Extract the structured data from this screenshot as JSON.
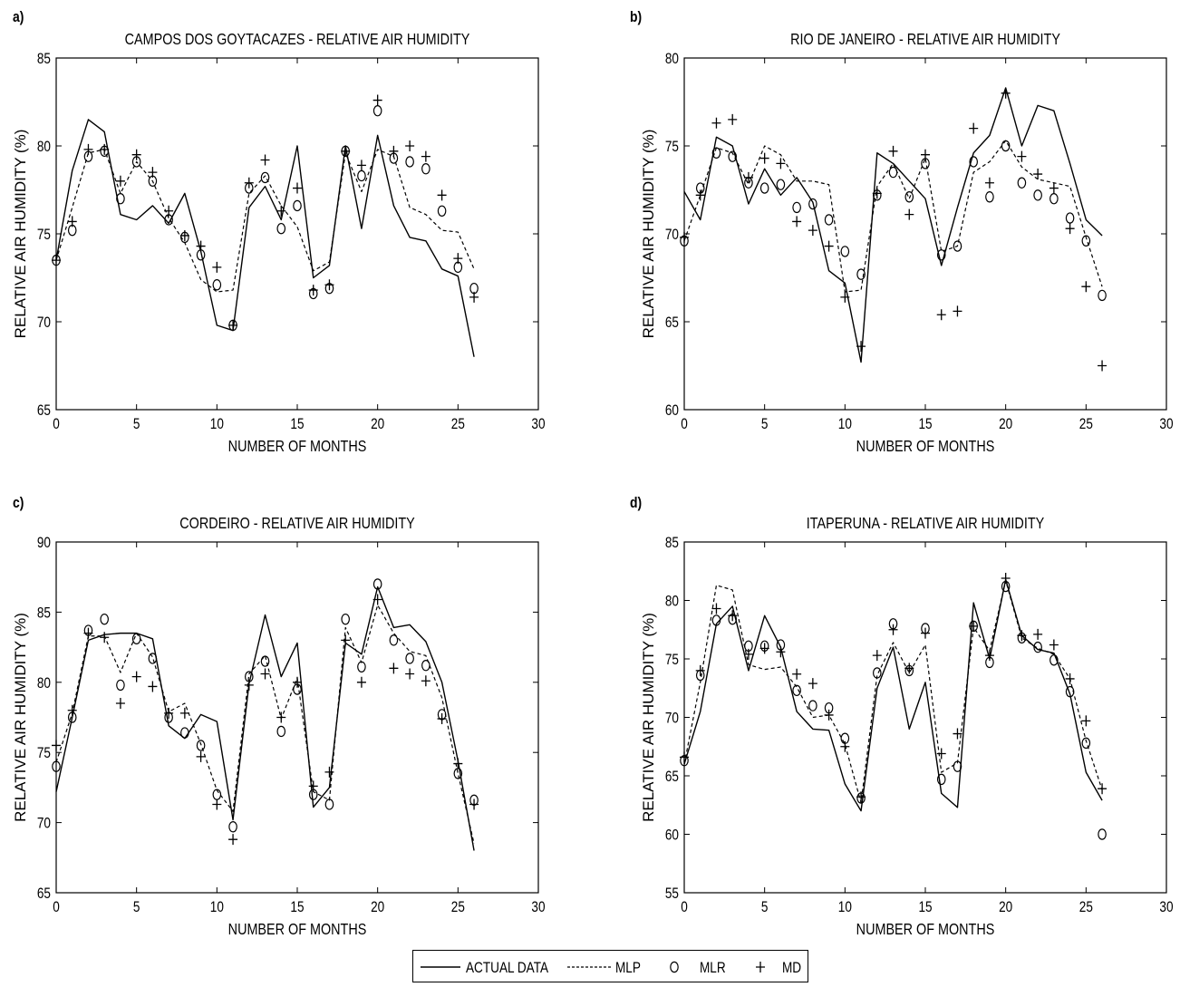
{
  "figure": {
    "legend": {
      "entries": [
        {
          "label": "ACTUAL DATA",
          "style": "solid-line"
        },
        {
          "label": "MLP",
          "style": "dashed-line"
        },
        {
          "label": "MLR",
          "style": "circle-marker"
        },
        {
          "label": "MD",
          "style": "plus-marker"
        }
      ]
    }
  },
  "chart_data": [
    {
      "panel_label": "a)",
      "type": "line",
      "title": "CAMPOS DOS GOYTACAZES - RELATIVE AIR HUMIDITY",
      "xlabel": "NUMBER OF MONTHS",
      "ylabel": "RELATIVE AIR HUMIDITY (%)",
      "xlim": [
        0,
        30
      ],
      "ylim": [
        65,
        85
      ],
      "xticks": [
        0,
        5,
        10,
        15,
        20,
        25,
        30
      ],
      "yticks": [
        65,
        70,
        75,
        80,
        85
      ],
      "grid": false,
      "x": [
        0,
        1,
        2,
        3,
        4,
        5,
        6,
        7,
        8,
        9,
        10,
        11,
        12,
        13,
        14,
        15,
        16,
        17,
        18,
        19,
        20,
        21,
        22,
        23,
        24,
        25,
        26
      ],
      "series": [
        {
          "name": "ACTUAL DATA",
          "style": "solid",
          "values": [
            73.5,
            78.6,
            81.5,
            80.8,
            76.1,
            75.8,
            76.6,
            75.6,
            77.3,
            74.0,
            69.8,
            69.5,
            76.5,
            77.7,
            75.8,
            80.0,
            72.5,
            73.2,
            80.0,
            75.3,
            80.6,
            76.6,
            74.8,
            74.6,
            73.0,
            72.6,
            68.0
          ]
        },
        {
          "name": "MLP",
          "style": "dashed",
          "values": [
            73.5,
            76.5,
            79.6,
            79.8,
            77.3,
            79.1,
            78.0,
            75.9,
            74.5,
            72.4,
            71.7,
            71.8,
            77.3,
            78.3,
            76.6,
            75.4,
            72.9,
            73.4,
            79.6,
            77.4,
            79.8,
            79.4,
            76.5,
            76.1,
            75.2,
            75.1,
            73.0
          ]
        },
        {
          "name": "MLR",
          "style": "circle",
          "values": [
            73.5,
            75.2,
            79.4,
            79.7,
            77.0,
            79.1,
            78.0,
            75.8,
            74.8,
            73.8,
            72.1,
            69.8,
            77.6,
            78.2,
            75.3,
            76.6,
            71.6,
            71.9,
            79.7,
            78.3,
            82.0,
            79.3,
            79.1,
            78.7,
            76.3,
            73.1,
            71.9
          ]
        },
        {
          "name": "MD",
          "style": "plus",
          "values": [
            73.5,
            75.7,
            79.8,
            79.8,
            78.0,
            79.5,
            78.5,
            76.3,
            74.9,
            74.3,
            73.1,
            69.8,
            77.9,
            79.2,
            76.3,
            77.6,
            71.8,
            72.1,
            79.7,
            78.9,
            82.6,
            79.7,
            80.0,
            79.4,
            77.2,
            73.6,
            71.4
          ]
        }
      ]
    },
    {
      "panel_label": "b)",
      "type": "line",
      "title": "RIO DE JANEIRO - RELATIVE AIR HUMIDITY",
      "xlabel": "NUMBER OF MONTHS",
      "ylabel": "RELATIVE AIR HUMIDITY (%)",
      "xlim": [
        0,
        30
      ],
      "ylim": [
        60,
        80
      ],
      "xticks": [
        0,
        5,
        10,
        15,
        20,
        25,
        30
      ],
      "yticks": [
        60,
        65,
        70,
        75,
        80
      ],
      "grid": false,
      "x": [
        0,
        1,
        2,
        3,
        4,
        5,
        6,
        7,
        8,
        9,
        10,
        11,
        12,
        13,
        14,
        15,
        16,
        17,
        18,
        19,
        20,
        21,
        22,
        23,
        24,
        25,
        26
      ],
      "series": [
        {
          "name": "ACTUAL DATA",
          "style": "solid",
          "values": [
            72.4,
            70.8,
            75.5,
            75.0,
            71.7,
            73.7,
            72.2,
            73.2,
            71.8,
            67.9,
            67.2,
            62.7,
            74.6,
            74.0,
            73.0,
            72.0,
            68.2,
            71.5,
            74.6,
            75.6,
            78.3,
            75.0,
            77.3,
            77.0,
            74.0,
            70.8,
            69.9
          ]
        },
        {
          "name": "MLP",
          "style": "dashed",
          "values": [
            69.6,
            72.2,
            74.9,
            74.6,
            72.8,
            75.0,
            74.5,
            73.0,
            73.0,
            72.8,
            66.7,
            66.8,
            72.7,
            74.0,
            72.0,
            74.3,
            69.0,
            69.3,
            73.5,
            74.1,
            75.3,
            73.8,
            73.1,
            72.9,
            72.7,
            69.8,
            67.0
          ]
        },
        {
          "name": "MLR",
          "style": "circle",
          "values": [
            69.6,
            72.6,
            74.6,
            74.4,
            72.9,
            72.6,
            72.8,
            71.5,
            71.7,
            70.8,
            69.0,
            67.7,
            72.2,
            73.5,
            72.1,
            74.0,
            68.8,
            69.3,
            74.1,
            72.1,
            75.0,
            72.9,
            72.2,
            72.0,
            70.9,
            69.6,
            66.5
          ]
        },
        {
          "name": "MD",
          "style": "plus",
          "values": [
            69.8,
            72.2,
            76.3,
            76.5,
            73.2,
            74.3,
            74.0,
            70.7,
            70.2,
            69.3,
            66.4,
            63.6,
            72.3,
            74.7,
            71.1,
            74.5,
            65.4,
            65.6,
            76.0,
            72.9,
            78.0,
            74.4,
            73.4,
            72.6,
            70.3,
            67.0,
            62.5
          ]
        }
      ]
    },
    {
      "panel_label": "c)",
      "type": "line",
      "title": "CORDEIRO - RELATIVE AIR HUMIDITY",
      "xlabel": "NUMBER OF MONTHS",
      "ylabel": "RELATIVE AIR HUMIDITY (%)",
      "xlim": [
        0,
        30
      ],
      "ylim": [
        65,
        90
      ],
      "xticks": [
        0,
        5,
        10,
        15,
        20,
        25,
        30
      ],
      "yticks": [
        65,
        70,
        75,
        80,
        85,
        90
      ],
      "grid": false,
      "x": [
        0,
        1,
        2,
        3,
        4,
        5,
        6,
        7,
        8,
        9,
        10,
        11,
        12,
        13,
        14,
        15,
        16,
        17,
        18,
        19,
        20,
        21,
        22,
        23,
        24,
        25,
        26
      ],
      "series": [
        {
          "name": "ACTUAL DATA",
          "style": "solid",
          "values": [
            72.2,
            77.5,
            83.0,
            83.4,
            83.5,
            83.5,
            83.1,
            76.9,
            76.0,
            77.7,
            77.2,
            70.2,
            79.9,
            84.8,
            80.4,
            82.8,
            71.1,
            72.5,
            82.8,
            82.0,
            86.8,
            83.9,
            84.1,
            82.9,
            80.0,
            74.4,
            68.0
          ]
        },
        {
          "name": "MLP",
          "style": "dashed",
          "values": [
            74.3,
            77.8,
            83.3,
            83.3,
            80.7,
            83.5,
            81.8,
            77.9,
            78.5,
            75.6,
            72.3,
            70.8,
            80.6,
            81.9,
            77.4,
            80.3,
            72.2,
            71.6,
            83.9,
            81.4,
            85.5,
            83.5,
            82.2,
            81.9,
            78.9,
            73.5,
            68.5
          ]
        },
        {
          "name": "MLR",
          "style": "circle",
          "values": [
            74.0,
            77.5,
            83.7,
            84.5,
            79.8,
            83.1,
            81.7,
            77.5,
            76.4,
            75.5,
            72.0,
            69.7,
            80.4,
            81.5,
            76.5,
            79.5,
            72.0,
            71.3,
            84.5,
            81.1,
            87.0,
            83.0,
            81.7,
            81.2,
            77.7,
            73.5,
            71.6
          ]
        },
        {
          "name": "MD",
          "style": "plus",
          "values": [
            75.5,
            78.0,
            83.5,
            83.2,
            78.5,
            80.4,
            79.7,
            77.8,
            77.8,
            74.7,
            71.3,
            68.8,
            79.8,
            80.6,
            77.5,
            80.0,
            72.6,
            73.6,
            83.0,
            80.0,
            85.9,
            81.0,
            80.6,
            80.1,
            77.4,
            74.2,
            71.3
          ]
        }
      ]
    },
    {
      "panel_label": "d)",
      "type": "line",
      "title": "ITAPERUNA - RELATIVE AIR HUMIDITY",
      "xlabel": "NUMBER OF MONTHS",
      "ylabel": "RELATIVE AIR HUMIDITY (%)",
      "xlim": [
        0,
        30
      ],
      "ylim": [
        55,
        85
      ],
      "xticks": [
        0,
        5,
        10,
        15,
        20,
        25,
        30
      ],
      "yticks": [
        55,
        60,
        65,
        70,
        75,
        80,
        85
      ],
      "grid": false,
      "x": [
        0,
        1,
        2,
        3,
        4,
        5,
        6,
        7,
        8,
        9,
        10,
        11,
        12,
        13,
        14,
        15,
        16,
        17,
        18,
        19,
        20,
        21,
        22,
        23,
        24,
        25,
        26
      ],
      "series": [
        {
          "name": "ACTUAL DATA",
          "style": "solid",
          "values": [
            66.0,
            70.5,
            78.0,
            79.5,
            74.0,
            78.7,
            76.0,
            70.5,
            69.0,
            68.9,
            64.3,
            62.0,
            72.5,
            76.0,
            69.0,
            73.0,
            63.5,
            62.3,
            79.8,
            75.0,
            81.8,
            77.0,
            75.8,
            75.5,
            72.0,
            65.3,
            62.9
          ]
        },
        {
          "name": "MLP",
          "style": "dashed",
          "values": [
            66.0,
            73.0,
            81.3,
            80.9,
            74.5,
            74.1,
            74.3,
            72.6,
            70.0,
            70.2,
            67.7,
            62.7,
            73.6,
            76.4,
            73.8,
            76.2,
            65.3,
            66.1,
            77.7,
            75.7,
            81.7,
            76.8,
            75.9,
            75.4,
            73.3,
            68.0,
            63.8
          ]
        },
        {
          "name": "MLR",
          "style": "circle",
          "values": [
            66.3,
            73.6,
            78.3,
            78.4,
            76.1,
            76.1,
            76.2,
            72.3,
            71.0,
            70.8,
            68.2,
            63.1,
            73.8,
            78.0,
            74.0,
            77.6,
            64.7,
            65.8,
            77.8,
            74.7,
            81.2,
            76.8,
            76.0,
            74.9,
            72.2,
            67.8,
            60.0
          ]
        },
        {
          "name": "MD",
          "style": "plus",
          "values": [
            66.6,
            74.0,
            79.3,
            78.7,
            75.4,
            75.9,
            75.6,
            73.7,
            72.9,
            70.2,
            67.5,
            63.2,
            75.3,
            77.5,
            74.2,
            77.2,
            66.9,
            68.6,
            77.8,
            75.3,
            81.9,
            77.0,
            77.1,
            76.2,
            73.3,
            69.7,
            63.9
          ]
        }
      ]
    }
  ]
}
